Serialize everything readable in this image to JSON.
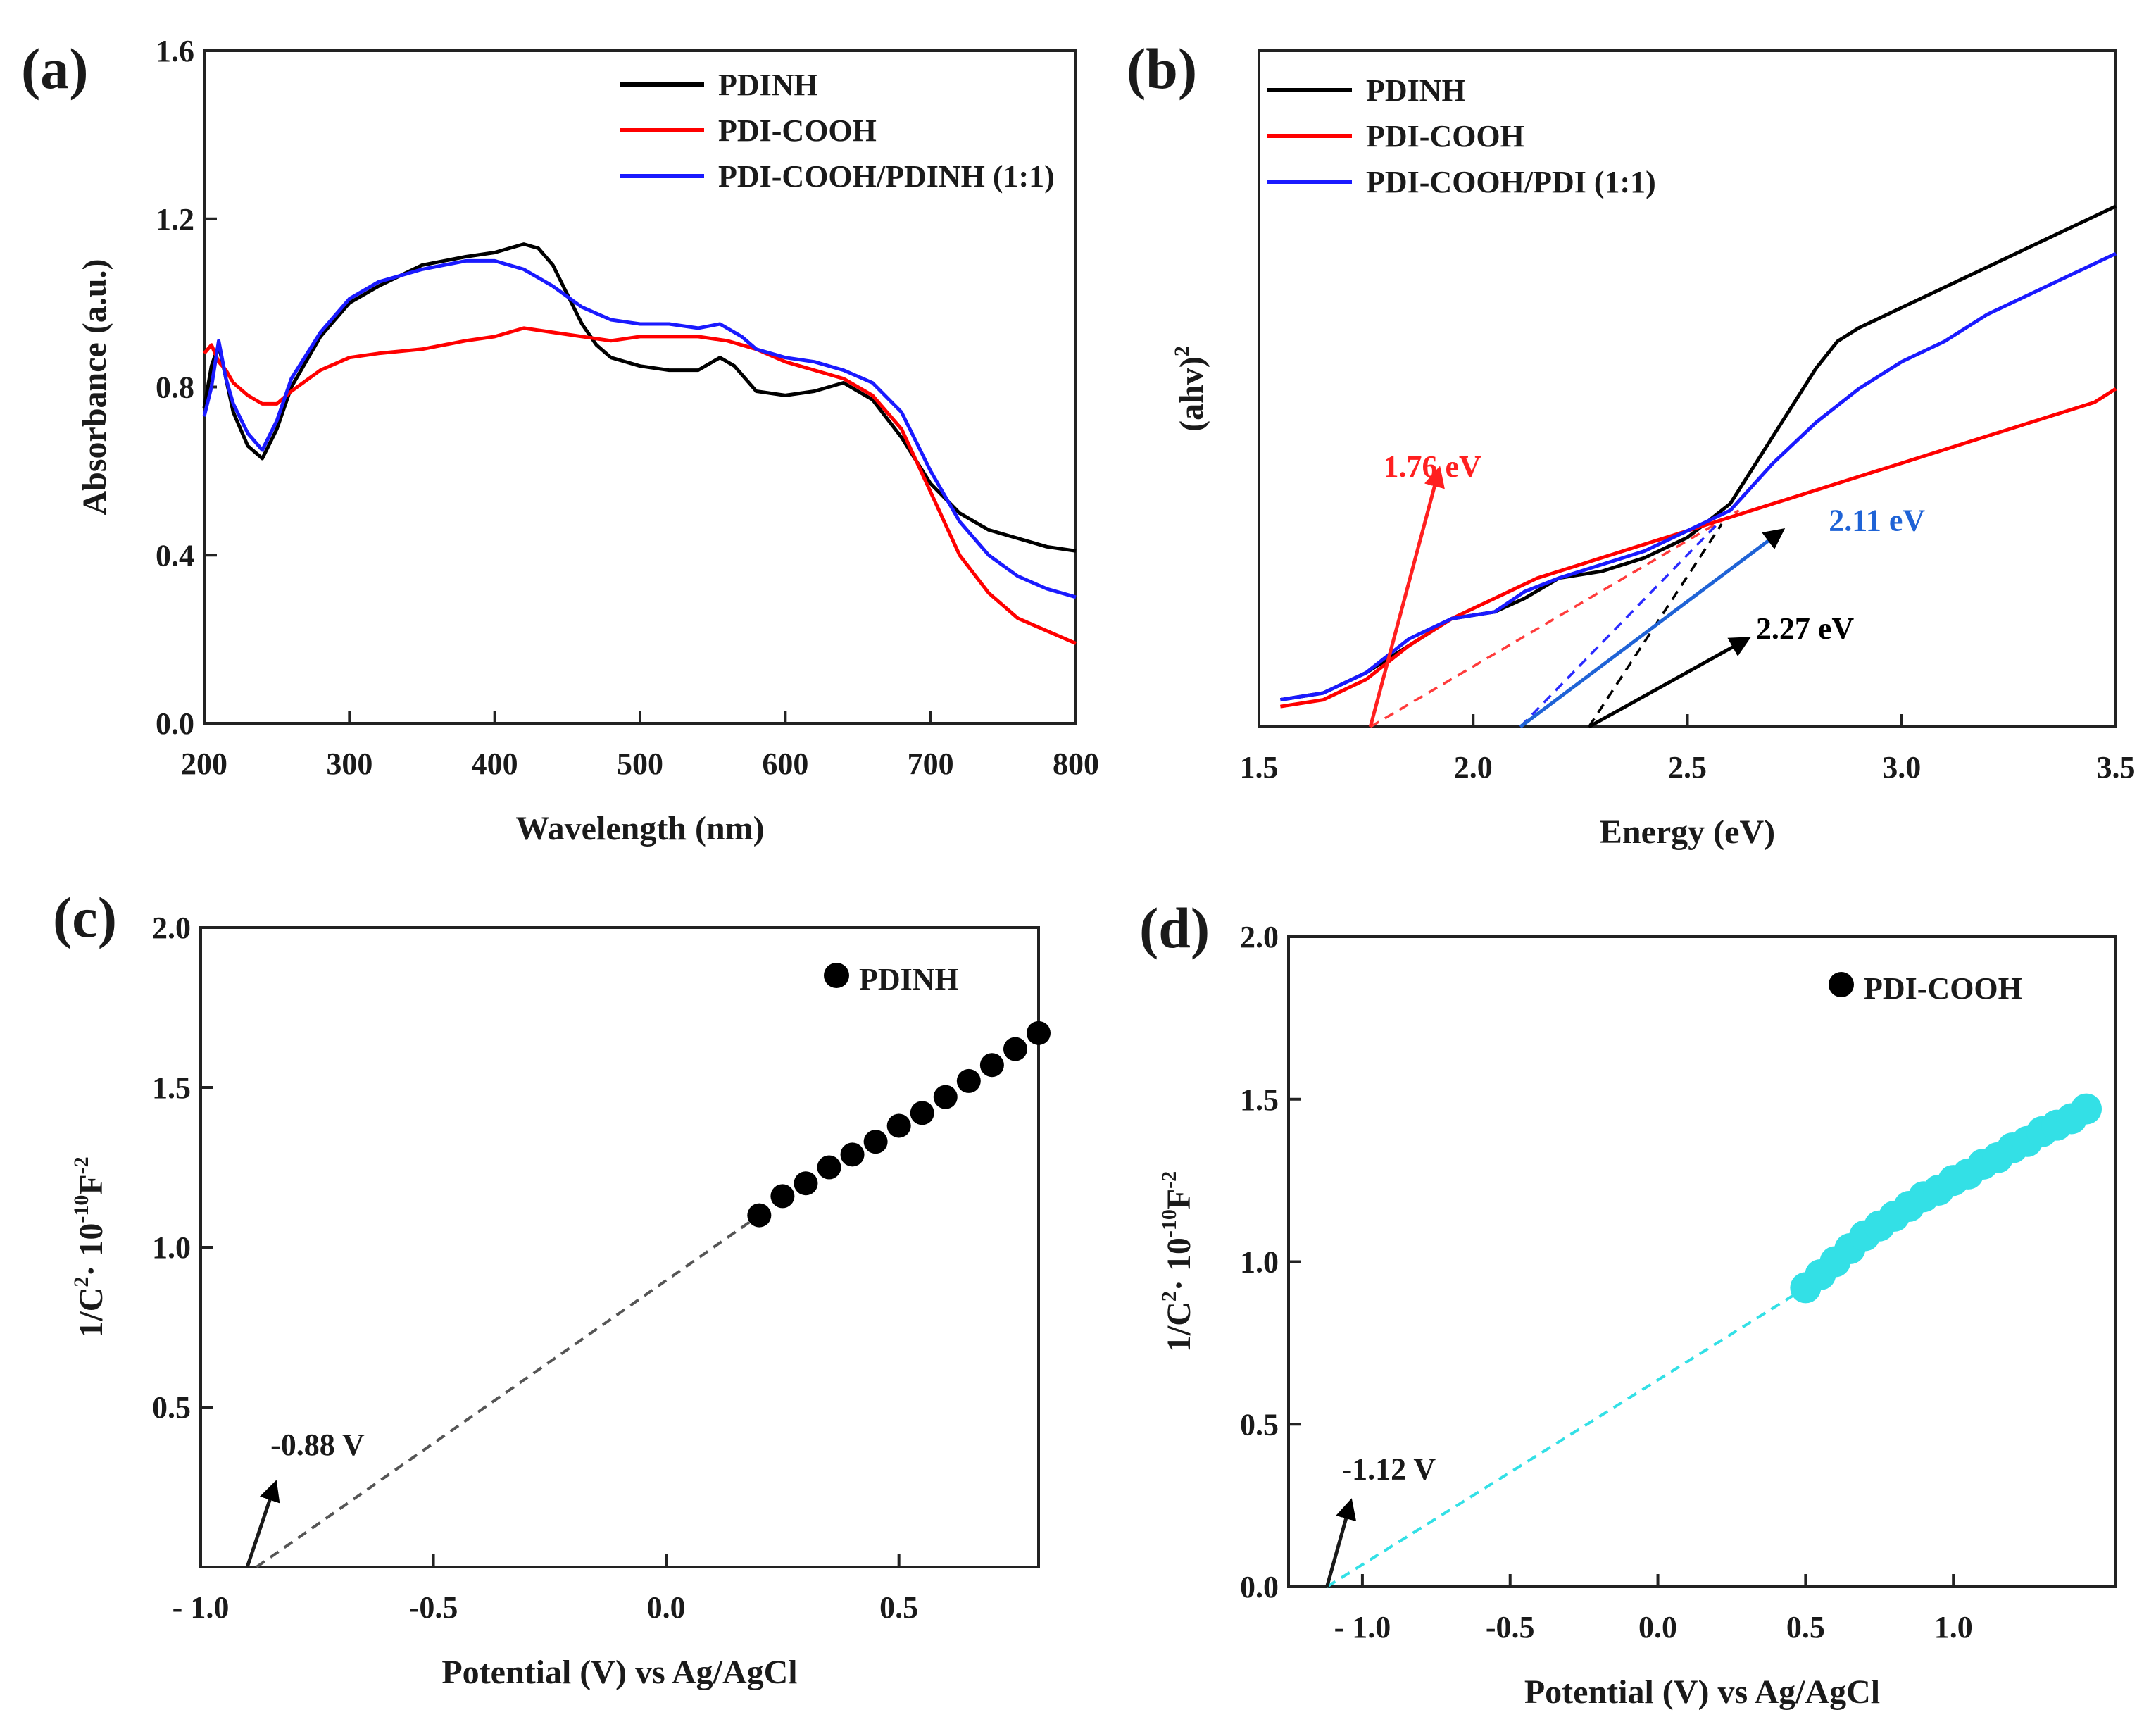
{
  "chart_data": [
    {
      "panel": "(a)",
      "type": "line",
      "title": "",
      "xlabel": "Wavelength (nm)",
      "ylabel": "Absorbance (a.u.)",
      "xlim": [
        200,
        800
      ],
      "ylim": [
        0.0,
        1.6
      ],
      "xticks": [
        200,
        300,
        400,
        500,
        600,
        700,
        800
      ],
      "yticks": [
        0.0,
        0.4,
        0.8,
        1.2,
        1.6
      ],
      "xtick_labels": [
        "200",
        "300",
        "400",
        "500",
        "600",
        "700",
        "800"
      ],
      "ytick_labels": [
        "0.0",
        "0.4",
        "0.8",
        "1.2",
        "1.6"
      ],
      "legend_position": "top-right",
      "series": [
        {
          "name": "PDINH",
          "color": "#000000",
          "x": [
            200,
            205,
            210,
            215,
            220,
            230,
            240,
            250,
            260,
            280,
            300,
            320,
            350,
            380,
            400,
            420,
            430,
            440,
            450,
            460,
            470,
            480,
            500,
            520,
            540,
            555,
            565,
            580,
            600,
            620,
            640,
            660,
            680,
            700,
            720,
            740,
            760,
            780,
            800
          ],
          "y": [
            0.75,
            0.85,
            0.9,
            0.82,
            0.74,
            0.66,
            0.63,
            0.7,
            0.8,
            0.92,
            1.0,
            1.04,
            1.09,
            1.11,
            1.12,
            1.14,
            1.13,
            1.09,
            1.02,
            0.95,
            0.9,
            0.87,
            0.85,
            0.84,
            0.84,
            0.87,
            0.85,
            0.79,
            0.78,
            0.79,
            0.81,
            0.77,
            0.68,
            0.57,
            0.5,
            0.46,
            0.44,
            0.42,
            0.41
          ]
        },
        {
          "name": "PDI-COOH",
          "color": "#ff0000",
          "x": [
            200,
            205,
            210,
            215,
            220,
            230,
            240,
            250,
            260,
            280,
            300,
            320,
            350,
            380,
            400,
            420,
            440,
            460,
            480,
            500,
            520,
            540,
            560,
            580,
            600,
            620,
            640,
            660,
            680,
            700,
            720,
            740,
            760,
            780,
            800
          ],
          "y": [
            0.88,
            0.9,
            0.86,
            0.84,
            0.81,
            0.78,
            0.76,
            0.76,
            0.79,
            0.84,
            0.87,
            0.88,
            0.89,
            0.91,
            0.92,
            0.94,
            0.93,
            0.92,
            0.91,
            0.92,
            0.92,
            0.92,
            0.91,
            0.89,
            0.86,
            0.84,
            0.82,
            0.78,
            0.7,
            0.55,
            0.4,
            0.31,
            0.25,
            0.22,
            0.19
          ]
        },
        {
          "name": "PDI-COOH/PDINH (1:1)",
          "color": "#1a1aff",
          "x": [
            200,
            205,
            210,
            215,
            220,
            230,
            240,
            250,
            260,
            280,
            300,
            320,
            350,
            380,
            400,
            420,
            440,
            460,
            480,
            500,
            520,
            540,
            555,
            570,
            580,
            600,
            620,
            640,
            660,
            680,
            700,
            720,
            740,
            760,
            780,
            800
          ],
          "y": [
            0.73,
            0.8,
            0.91,
            0.82,
            0.76,
            0.69,
            0.65,
            0.72,
            0.82,
            0.93,
            1.01,
            1.05,
            1.08,
            1.1,
            1.1,
            1.08,
            1.04,
            0.99,
            0.96,
            0.95,
            0.95,
            0.94,
            0.95,
            0.92,
            0.89,
            0.87,
            0.86,
            0.84,
            0.81,
            0.74,
            0.6,
            0.48,
            0.4,
            0.35,
            0.32,
            0.3
          ]
        }
      ]
    },
    {
      "panel": "(b)",
      "type": "line",
      "title": "",
      "xlabel": "Energy (eV)",
      "ylabel_base": "(ahv)",
      "ylabel_sup": "2",
      "xlim": [
        1.5,
        3.5
      ],
      "ylim": [
        0,
        1
      ],
      "xticks": [
        1.5,
        2.0,
        2.5,
        3.0,
        3.5
      ],
      "xtick_labels": [
        "1.5",
        "2.0",
        "2.5",
        "3.0",
        "3.5"
      ],
      "legend_position": "top-left",
      "series": [
        {
          "name": "PDINH",
          "color": "#000000",
          "x": [
            1.55,
            1.65,
            1.75,
            1.85,
            1.95,
            2.05,
            2.12,
            2.2,
            2.3,
            2.4,
            2.5,
            2.6,
            2.7,
            2.8,
            2.85,
            2.9,
            3.0,
            3.1,
            3.2,
            3.3,
            3.4,
            3.5
          ],
          "y": [
            0.04,
            0.05,
            0.08,
            0.12,
            0.16,
            0.17,
            0.19,
            0.22,
            0.23,
            0.25,
            0.28,
            0.33,
            0.43,
            0.53,
            0.57,
            0.59,
            0.62,
            0.65,
            0.68,
            0.71,
            0.74,
            0.77
          ]
        },
        {
          "name": "PDI-COOH",
          "color": "#ff0000",
          "x": [
            1.55,
            1.65,
            1.75,
            1.85,
            1.95,
            2.05,
            2.15,
            2.25,
            2.35,
            2.45,
            2.55,
            2.65,
            2.75,
            2.85,
            2.95,
            3.05,
            3.15,
            3.25,
            3.35,
            3.45,
            3.5
          ],
          "y": [
            0.03,
            0.04,
            0.07,
            0.12,
            0.16,
            0.19,
            0.22,
            0.24,
            0.26,
            0.28,
            0.3,
            0.32,
            0.34,
            0.36,
            0.38,
            0.4,
            0.42,
            0.44,
            0.46,
            0.48,
            0.5
          ]
        },
        {
          "name": "PDI-COOH/PDI (1:1)",
          "color": "#1a1aff",
          "x": [
            1.55,
            1.65,
            1.75,
            1.85,
            1.95,
            2.05,
            2.12,
            2.2,
            2.3,
            2.4,
            2.5,
            2.6,
            2.7,
            2.8,
            2.9,
            3.0,
            3.1,
            3.2,
            3.3,
            3.4,
            3.5
          ],
          "y": [
            0.04,
            0.05,
            0.08,
            0.13,
            0.16,
            0.17,
            0.2,
            0.22,
            0.24,
            0.26,
            0.29,
            0.32,
            0.39,
            0.45,
            0.5,
            0.54,
            0.57,
            0.61,
            0.64,
            0.67,
            0.7
          ]
        }
      ],
      "tangents": [
        {
          "color": "#ff3b3b",
          "x": [
            1.76,
            2.62
          ],
          "y": [
            0.0,
            0.32
          ]
        },
        {
          "color": "#2a2aff",
          "x": [
            2.11,
            2.57
          ],
          "y": [
            0.0,
            0.3
          ]
        },
        {
          "color": "#000000",
          "x": [
            2.27,
            2.58
          ],
          "y": [
            0.0,
            0.3
          ]
        }
      ],
      "annotations": [
        {
          "text": "1.76 eV",
          "color": "#ff2020",
          "x": 1.79,
          "y": 0.37,
          "arrow_from": [
            1.76,
            0.0
          ],
          "arrow_to": [
            1.92,
            0.38
          ]
        },
        {
          "text": "2.11 eV",
          "color": "#1f63d6",
          "x": 2.83,
          "y": 0.29,
          "arrow_from": [
            2.11,
            0.0
          ],
          "arrow_to": [
            2.72,
            0.29
          ]
        },
        {
          "text": "2.27 eV",
          "color": "#000000",
          "x": 2.66,
          "y": 0.13,
          "arrow_from": [
            2.27,
            0.0
          ],
          "arrow_to": [
            2.64,
            0.13
          ]
        }
      ]
    },
    {
      "panel": "(c)",
      "type": "scatter",
      "title": "",
      "xlabel": "Potential (V) vs Ag/AgCl",
      "ylabel_parts": [
        "1/C",
        "2",
        "· 10",
        "-10",
        "F",
        "-2"
      ],
      "xlim": [
        -1.0,
        0.8
      ],
      "ylim": [
        0.0,
        2.0
      ],
      "xticks": [
        -1.0,
        -0.5,
        0.0,
        0.5
      ],
      "yticks": [
        0.5,
        1.0,
        1.5,
        2.0
      ],
      "xtick_labels": [
        "- 1.0",
        "-0.5",
        "0.0",
        "0.5"
      ],
      "ytick_labels": [
        "0.5",
        "1.0",
        "1.5",
        "2.0"
      ],
      "legend_position": "top-right",
      "series": [
        {
          "name": "PDINH",
          "color": "#000000",
          "x": [
            0.2,
            0.25,
            0.3,
            0.35,
            0.4,
            0.45,
            0.5,
            0.55,
            0.6,
            0.65,
            0.7,
            0.75,
            0.8
          ],
          "y": [
            1.1,
            1.16,
            1.2,
            1.25,
            1.29,
            1.33,
            1.38,
            1.42,
            1.47,
            1.52,
            1.57,
            1.62,
            1.67
          ]
        }
      ],
      "fit_line": {
        "color": "#555555",
        "x": [
          -0.88,
          0.2
        ],
        "y": [
          0.0,
          1.1
        ]
      },
      "annotations": [
        {
          "text": "-0.88 V",
          "x": -0.85,
          "y": 0.35,
          "arrow_from": [
            -0.9,
            0.0
          ],
          "arrow_to": [
            -0.84,
            0.26
          ]
        }
      ]
    },
    {
      "panel": "(d)",
      "type": "scatter",
      "title": "",
      "xlabel": "Potential (V) vs Ag/AgCl",
      "ylabel_parts": [
        "1/C",
        "2",
        "· 10",
        "-10",
        "F",
        "-2"
      ],
      "xlim": [
        -1.25,
        1.55
      ],
      "ylim": [
        0.0,
        2.0
      ],
      "xticks": [
        -1.0,
        -0.5,
        0.0,
        0.5,
        1.0
      ],
      "yticks": [
        0.0,
        0.5,
        1.0,
        1.5,
        2.0
      ],
      "xtick_labels": [
        "- 1.0",
        "-0.5",
        "0.0",
        "0.5",
        "1.0"
      ],
      "ytick_labels": [
        "0.0",
        "0.5",
        "1.0",
        "1.5",
        "2.0"
      ],
      "legend_position": "top-right",
      "series": [
        {
          "name": "PDI-COOH",
          "color": "#33e0e6",
          "legend_color": "#000000",
          "x": [
            0.5,
            0.55,
            0.6,
            0.65,
            0.7,
            0.75,
            0.8,
            0.85,
            0.9,
            0.95,
            1.0,
            1.05,
            1.1,
            1.15,
            1.2,
            1.25,
            1.3,
            1.35,
            1.4,
            1.45
          ],
          "y": [
            0.92,
            0.96,
            1.0,
            1.04,
            1.08,
            1.11,
            1.14,
            1.17,
            1.2,
            1.22,
            1.25,
            1.27,
            1.3,
            1.32,
            1.35,
            1.37,
            1.4,
            1.42,
            1.44,
            1.47
          ]
        }
      ],
      "fit_line": {
        "color": "#33e0e6",
        "x": [
          -1.12,
          0.5
        ],
        "y": [
          0.0,
          0.92
        ]
      },
      "annotations": [
        {
          "text": "-1.12 V",
          "x": -1.07,
          "y": 0.33,
          "arrow_from": [
            -1.12,
            0.0
          ],
          "arrow_to": [
            -1.04,
            0.26
          ]
        }
      ]
    }
  ],
  "panel_labels": [
    "(a)",
    "(b)",
    "(c)",
    "(d)"
  ]
}
